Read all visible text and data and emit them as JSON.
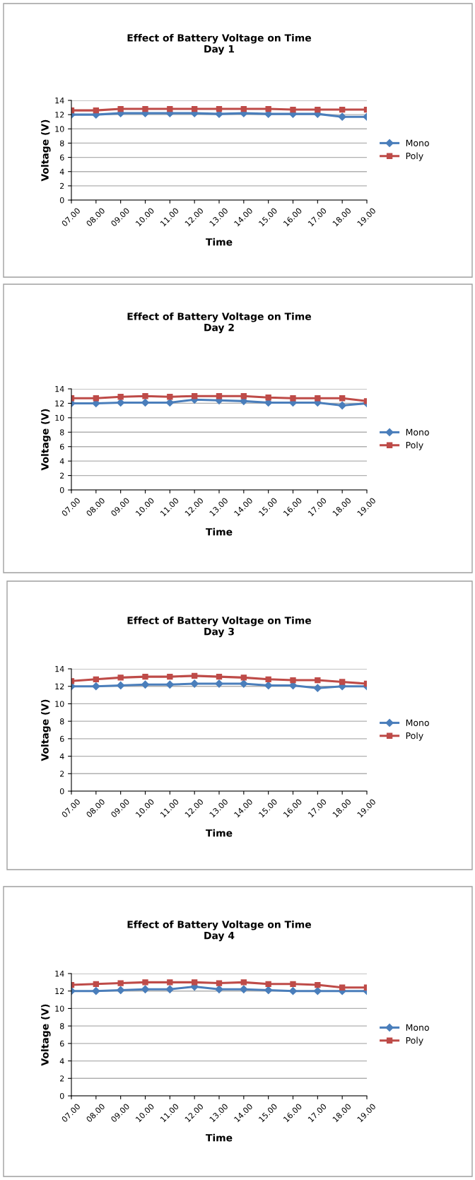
{
  "chart_data": [
    {
      "type": "line",
      "title": "Effect of Battery Voltage on Time",
      "subtitle": "Day 1",
      "xlabel": "Time",
      "ylabel": "Voltage (V)",
      "categories": [
        "07.00",
        "08.00",
        "09.00",
        "10.00",
        "11.00",
        "12.00",
        "13.00",
        "14.00",
        "15.00",
        "16.00",
        "17.00",
        "18.00",
        "19.00"
      ],
      "ylim": [
        0,
        14
      ],
      "yticks": [
        0,
        2,
        4,
        6,
        8,
        10,
        12,
        14
      ],
      "grid": "y",
      "legend": "right",
      "series": [
        {
          "name": "Mono",
          "color": "#4a7ebb",
          "marker": "diamond",
          "values": [
            12.0,
            12.0,
            12.2,
            12.2,
            12.2,
            12.2,
            12.1,
            12.2,
            12.1,
            12.1,
            12.1,
            11.7,
            11.7
          ]
        },
        {
          "name": "Poly",
          "color": "#be4b48",
          "marker": "square",
          "values": [
            12.6,
            12.6,
            12.8,
            12.8,
            12.8,
            12.8,
            12.8,
            12.8,
            12.8,
            12.7,
            12.7,
            12.7,
            12.7
          ]
        }
      ]
    },
    {
      "type": "line",
      "title": "Effect of Battery Voltage on Time",
      "subtitle": "Day 2",
      "xlabel": "Time",
      "ylabel": "Voltage (V)",
      "categories": [
        "07.00",
        "08.00",
        "09.00",
        "10.00",
        "11.00",
        "12.00",
        "13.00",
        "14.00",
        "15.00",
        "16.00",
        "17.00",
        "18.00",
        "19.00"
      ],
      "ylim": [
        0,
        14
      ],
      "yticks": [
        0,
        2,
        4,
        6,
        8,
        10,
        12,
        14
      ],
      "grid": "y",
      "legend": "right",
      "series": [
        {
          "name": "Mono",
          "color": "#4a7ebb",
          "marker": "diamond",
          "values": [
            12.0,
            12.0,
            12.1,
            12.1,
            12.1,
            12.5,
            12.4,
            12.3,
            12.1,
            12.1,
            12.1,
            11.7,
            12.0
          ]
        },
        {
          "name": "Poly",
          "color": "#be4b48",
          "marker": "square",
          "values": [
            12.7,
            12.7,
            12.9,
            13.0,
            12.9,
            13.0,
            13.0,
            13.0,
            12.8,
            12.7,
            12.7,
            12.7,
            12.3
          ]
        }
      ]
    },
    {
      "type": "line",
      "title": "Effect of Battery Voltage on Time",
      "subtitle": "Day 3",
      "xlabel": "Time",
      "ylabel": "Voltage (V)",
      "categories": [
        "07.00",
        "08.00",
        "09.00",
        "10.00",
        "11.00",
        "12.00",
        "13.00",
        "14.00",
        "15.00",
        "16.00",
        "17.00",
        "18.00",
        "19.00"
      ],
      "ylim": [
        0,
        14
      ],
      "yticks": [
        0,
        2,
        4,
        6,
        8,
        10,
        12,
        14
      ],
      "grid": "y",
      "legend": "right",
      "series": [
        {
          "name": "Mono",
          "color": "#4a7ebb",
          "marker": "diamond",
          "values": [
            12.0,
            12.0,
            12.1,
            12.2,
            12.2,
            12.3,
            12.3,
            12.3,
            12.1,
            12.1,
            11.8,
            12.0,
            12.0
          ]
        },
        {
          "name": "Poly",
          "color": "#be4b48",
          "marker": "square",
          "values": [
            12.6,
            12.8,
            13.0,
            13.1,
            13.1,
            13.2,
            13.1,
            13.0,
            12.8,
            12.7,
            12.7,
            12.5,
            12.3
          ]
        }
      ]
    },
    {
      "type": "line",
      "title": "Effect of Battery Voltage on Time",
      "subtitle": "Day 4",
      "xlabel": "Time",
      "ylabel": "Voltage (V)",
      "categories": [
        "07.00",
        "08.00",
        "09.00",
        "10.00",
        "11.00",
        "12.00",
        "13.00",
        "14.00",
        "15.00",
        "16.00",
        "17.00",
        "18.00",
        "19.00"
      ],
      "ylim": [
        0,
        14
      ],
      "yticks": [
        0,
        2,
        4,
        6,
        8,
        10,
        12,
        14
      ],
      "grid": "y",
      "legend": "right",
      "series": [
        {
          "name": "Mono",
          "color": "#4a7ebb",
          "marker": "diamond",
          "values": [
            12.0,
            12.0,
            12.1,
            12.2,
            12.2,
            12.5,
            12.2,
            12.2,
            12.1,
            12.0,
            12.0,
            12.0,
            12.0
          ]
        },
        {
          "name": "Poly",
          "color": "#be4b48",
          "marker": "square",
          "values": [
            12.7,
            12.8,
            12.9,
            13.0,
            13.0,
            13.0,
            12.9,
            13.0,
            12.8,
            12.8,
            12.7,
            12.4,
            12.4
          ]
        }
      ]
    }
  ]
}
